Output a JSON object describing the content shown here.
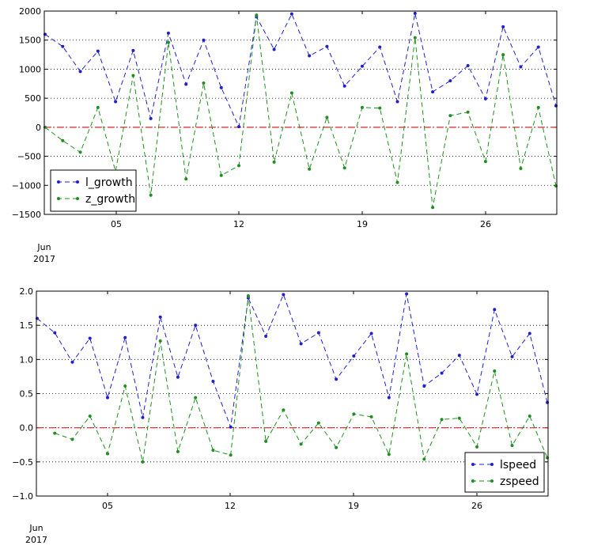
{
  "chart_data": [
    {
      "type": "line",
      "x": [
        "2017-06-01",
        "2017-06-02",
        "2017-06-03",
        "2017-06-04",
        "2017-06-05",
        "2017-06-06",
        "2017-06-07",
        "2017-06-08",
        "2017-06-09",
        "2017-06-10",
        "2017-06-11",
        "2017-06-12",
        "2017-06-13",
        "2017-06-14",
        "2017-06-15",
        "2017-06-16",
        "2017-06-17",
        "2017-06-18",
        "2017-06-19",
        "2017-06-20",
        "2017-06-21",
        "2017-06-22",
        "2017-06-23",
        "2017-06-24",
        "2017-06-25",
        "2017-06-26",
        "2017-06-27",
        "2017-06-28",
        "2017-06-29",
        "2017-06-30"
      ],
      "series": [
        {
          "name": "l_growth",
          "color": "#1f1fcf",
          "values": [
            1600,
            1390,
            960,
            1310,
            440,
            1320,
            150,
            1620,
            740,
            1500,
            680,
            10,
            1900,
            1340,
            1950,
            1230,
            1390,
            710,
            1050,
            1380,
            440,
            1960,
            610,
            800,
            1060,
            490,
            1730,
            1040,
            1380,
            370
          ]
        },
        {
          "name": "z_growth",
          "color": "#1f8f1f",
          "values": [
            0,
            -230,
            -430,
            340,
            -760,
            890,
            -1170,
            1460,
            -890,
            760,
            -830,
            -660,
            1930,
            -600,
            590,
            -720,
            170,
            -700,
            340,
            330,
            -950,
            1540,
            -1380,
            200,
            260,
            -590,
            1250,
            -710,
            340,
            -1010
          ]
        }
      ],
      "reference_line": {
        "y": 0,
        "color": "#d62728"
      },
      "ylim": [
        -1500,
        2000
      ],
      "yticks": [
        "2000",
        "1500",
        "1000",
        "500",
        "0",
        "−500",
        "−1000",
        "−1500"
      ],
      "xtick_labels": [
        "05",
        "12",
        "19",
        "26"
      ],
      "xaxis_extra": [
        "Jun",
        "2017"
      ],
      "grid": "y-dotted",
      "legend": "lower-left"
    },
    {
      "type": "line",
      "x": [
        "2017-06-01",
        "2017-06-02",
        "2017-06-03",
        "2017-06-04",
        "2017-06-05",
        "2017-06-06",
        "2017-06-07",
        "2017-06-08",
        "2017-06-09",
        "2017-06-10",
        "2017-06-11",
        "2017-06-12",
        "2017-06-13",
        "2017-06-14",
        "2017-06-15",
        "2017-06-16",
        "2017-06-17",
        "2017-06-18",
        "2017-06-19",
        "2017-06-20",
        "2017-06-21",
        "2017-06-22",
        "2017-06-23",
        "2017-06-24",
        "2017-06-25",
        "2017-06-26",
        "2017-06-27",
        "2017-06-28",
        "2017-06-29",
        "2017-06-30"
      ],
      "series": [
        {
          "name": "lspeed",
          "color": "#1f1fcf",
          "values": [
            1.6,
            1.39,
            0.96,
            1.31,
            0.44,
            1.32,
            0.15,
            1.62,
            0.74,
            1.5,
            0.68,
            0.01,
            1.9,
            1.34,
            1.95,
            1.23,
            1.39,
            0.71,
            1.05,
            1.38,
            0.44,
            1.96,
            0.61,
            0.8,
            1.06,
            0.49,
            1.73,
            1.04,
            1.38,
            0.37
          ]
        },
        {
          "name": "zspeed",
          "color": "#1f8f1f",
          "values": [
            null,
            -0.08,
            -0.17,
            0.17,
            -0.38,
            0.61,
            -0.5,
            1.27,
            -0.35,
            0.44,
            -0.33,
            -0.4,
            1.93,
            -0.2,
            0.26,
            -0.24,
            0.07,
            -0.29,
            0.2,
            0.16,
            -0.39,
            1.08,
            -0.46,
            0.12,
            0.14,
            -0.28,
            0.83,
            -0.26,
            0.17,
            -0.44
          ]
        }
      ],
      "reference_line": {
        "y": 0,
        "color": "#d62728"
      },
      "ylim": [
        -1.0,
        2.0
      ],
      "yticks": [
        "2.0",
        "1.5",
        "1.0",
        "0.5",
        "0.0",
        "−0.5",
        "−1.0"
      ],
      "xtick_labels": [
        "05",
        "12",
        "19",
        "26"
      ],
      "xaxis_extra": [
        "Jun",
        "2017"
      ],
      "grid": "y-dotted",
      "legend": "lower-right"
    }
  ]
}
